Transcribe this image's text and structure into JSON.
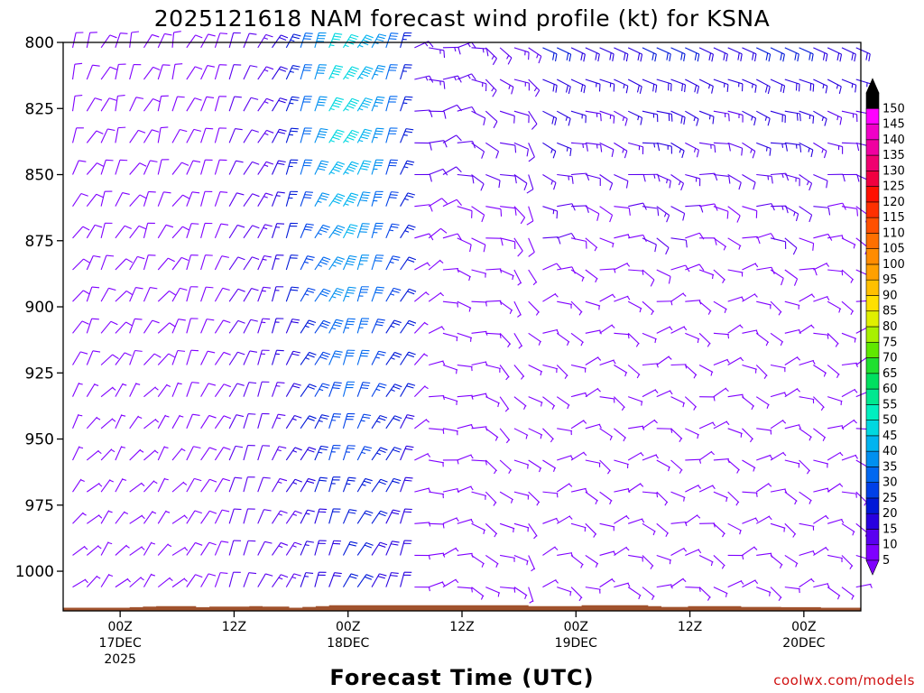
{
  "chart_data": {
    "type": "wind_barb_time_height",
    "title": "2025121618 NAM forecast wind profile (kt) for KSNA",
    "xlabel": "Forecast Time (UTC)",
    "ylabel": "",
    "credit": "coolwx.com/models",
    "y_axis": {
      "units": "hPa",
      "range": [
        1015,
        800
      ],
      "ticks": [
        800,
        825,
        850,
        875,
        900,
        925,
        950,
        975,
        1000
      ],
      "tick_labels": [
        "800",
        "825",
        "850",
        "875",
        "900",
        "925",
        "950",
        "975",
        "1000"
      ]
    },
    "x_axis": {
      "units": "forecast hour",
      "range": [
        0,
        84
      ],
      "ticks": [
        {
          "hour": 6,
          "lines": [
            "00Z",
            "17DEC",
            "2025"
          ]
        },
        {
          "hour": 18,
          "lines": [
            "12Z",
            "",
            ""
          ]
        },
        {
          "hour": 30,
          "lines": [
            "00Z",
            "18DEC",
            ""
          ]
        },
        {
          "hour": 42,
          "lines": [
            "12Z",
            "",
            ""
          ]
        },
        {
          "hour": 54,
          "lines": [
            "00Z",
            "19DEC",
            ""
          ]
        },
        {
          "hour": 66,
          "lines": [
            "12Z",
            "",
            ""
          ]
        },
        {
          "hour": 78,
          "lines": [
            "00Z",
            "20DEC",
            ""
          ]
        }
      ]
    },
    "colorbar": {
      "units": "kt",
      "levels": [
        5,
        10,
        15,
        20,
        25,
        30,
        35,
        40,
        45,
        50,
        55,
        60,
        65,
        70,
        75,
        80,
        85,
        90,
        95,
        100,
        105,
        110,
        115,
        120,
        125,
        130,
        135,
        140,
        145,
        150
      ],
      "labels": [
        "5",
        "10",
        "15",
        "20",
        "25",
        "30",
        "35",
        "40",
        "45",
        "50",
        "55",
        "60",
        "65",
        "70",
        "75",
        "80",
        "85",
        "90",
        "95",
        "100",
        "105",
        "110",
        "115",
        "120",
        "125",
        "130",
        "135",
        "140",
        "145",
        "150"
      ],
      "colors": [
        "#7f00ff",
        "#5a00f0",
        "#2800e0",
        "#0018d8",
        "#0040e8",
        "#0068f0",
        "#0090f0",
        "#00b4f0",
        "#00d8e0",
        "#00f0c0",
        "#00e890",
        "#00e060",
        "#20e030",
        "#60e800",
        "#a8f000",
        "#e0f000",
        "#ffe000",
        "#ffc000",
        "#ffa000",
        "#ff8c00",
        "#ff7000",
        "#ff5000",
        "#ff3000",
        "#ff1000",
        "#f00040",
        "#f00070",
        "#f000a0",
        "#f000c8",
        "#ff00ff",
        "#000000"
      ]
    },
    "terrain": {
      "color": "#a0522d",
      "surface_pressure_hpa": [
        1013.8,
        1013.8,
        1013.8,
        1013.8,
        1013.8,
        1013.6,
        1013.4,
        1013.2,
        1013.2,
        1013.2,
        1013.6,
        1013.4,
        1013.4,
        1013.4,
        1013.2,
        1013.4,
        1013.4,
        1013.8,
        1013.5,
        1013.2,
        1012.9,
        1012.9,
        1012.9,
        1012.9,
        1012.9,
        1012.9,
        1012.9,
        1012.9,
        1012.9,
        1012.9,
        1012.9,
        1012.9,
        1012.9,
        1012.9,
        1012.9,
        1013.2,
        1013.2,
        1013.2,
        1013.2,
        1012.9,
        1012.9,
        1012.9,
        1012.9,
        1012.9,
        1013.2,
        1013.5,
        1013.5,
        1013.2,
        1013.2,
        1013.2,
        1013.2,
        1013.5,
        1013.5,
        1013.5,
        1013.6,
        1013.6,
        1013.6,
        1013.8,
        1013.8,
        1013.8
      ]
    },
    "wind_profile": {
      "pressure_levels_hpa": [
        802,
        814,
        826,
        838,
        850,
        862,
        874,
        886,
        898,
        910,
        922,
        934,
        946,
        958,
        970,
        982,
        994,
        1006
      ],
      "phases": [
        {
          "hours": [
            0,
            12
          ],
          "regime": "light northerly / northeasterly flow",
          "speed_kt": [
            5,
            12
          ]
        },
        {
          "hours": [
            12,
            36
          ],
          "regime": "offshore northeasterly flow strengthening aloft",
          "speed_kt": [
            10,
            40
          ]
        },
        {
          "hours": [
            36,
            50
          ],
          "regime": "flow weakening and backing near surface",
          "speed_kt": [
            5,
            20
          ]
        },
        {
          "hours": [
            50,
            84
          ],
          "regime": "easterly to southeasterly flow aloft, light variable near surface",
          "speed_kt": [
            5,
            25
          ]
        }
      ]
    }
  }
}
